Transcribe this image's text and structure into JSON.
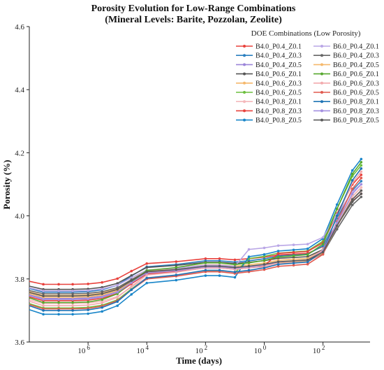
{
  "chart_data": {
    "type": "line",
    "title": "Porosity Evolution for Low-Range Combinations",
    "subtitle": "(Mineral Levels: Barite, Pozzolan, Zeolite)",
    "xlabel": "Time (days)",
    "ylabel": "Porosity (%)",
    "xscale": "log",
    "xlim": [
      1e-08,
      4000
    ],
    "ylim": [
      3.6,
      4.6
    ],
    "x_ticks": [
      {
        "value": 1e-06,
        "base": "10",
        "exp": "6"
      },
      {
        "value": 0.0001,
        "base": "10",
        "exp": "4"
      },
      {
        "value": 0.01,
        "base": "10",
        "exp": "2"
      },
      {
        "value": 1,
        "base": "10",
        "exp": "0"
      },
      {
        "value": 100,
        "base": "10",
        "exp": "2"
      }
    ],
    "y_ticks": [
      "3.6",
      "3.8",
      "4.0",
      "4.2",
      "4.4",
      "4.6"
    ],
    "grid": false,
    "legend_title": "DOE Combinations (Low Porosity)",
    "legend_position": "top-right",
    "shape": {
      "x": [
        1e-08,
        3e-08,
        1e-07,
        3e-07,
        1e-06,
        3e-06,
        1e-05,
        3e-05,
        0.0001,
        0.001,
        0.01,
        0.03,
        0.1,
        0.3,
        1,
        3,
        10,
        30,
        100,
        300,
        1000,
        2000
      ],
      "base": [
        0.008,
        0.0,
        0.0,
        0.0,
        0.001,
        0.005,
        0.015,
        0.035,
        0.055,
        0.06,
        0.068,
        0.068,
        0.065,
        0.068,
        0.072,
        0.078,
        0.08,
        0.082,
        0.1,
        0.16,
        0.22,
        0.24
      ]
    },
    "series": [
      {
        "name": "B4.0_P0.4_Z0.1",
        "color": "#e8413c",
        "start": 3.783,
        "end": 4.07,
        "jump_x": 0.08,
        "jump": 0.0
      },
      {
        "name": "B4.0_P0.4_Z0.3",
        "color": "#2a7fbf",
        "start": 3.758,
        "end": 4.11,
        "jump_x": 0.08,
        "jump": 0.0
      },
      {
        "name": "B4.0_P0.4_Z0.5",
        "color": "#9b84d9",
        "start": 3.738,
        "end": 4.08,
        "jump_x": 0.08,
        "jump": 0.0
      },
      {
        "name": "B4.0_P0.6_Z0.1",
        "color": "#555555",
        "start": 3.767,
        "end": 4.07,
        "jump_x": 0.08,
        "jump": 0.0
      },
      {
        "name": "B4.0_P0.6_Z0.3",
        "color": "#f5b86b",
        "start": 3.748,
        "end": 4.09,
        "jump_x": 0.08,
        "jump": 0.0
      },
      {
        "name": "B4.0_P0.6_Z0.5",
        "color": "#6cbf3e",
        "start": 3.708,
        "end": 4.16,
        "jump_x": 0.15,
        "jump": 0.04
      },
      {
        "name": "B4.0_P0.8_Z0.1",
        "color": "#f4b8bb",
        "start": 3.722,
        "end": 4.09,
        "jump_x": 0.5,
        "jump": 0.01
      },
      {
        "name": "B4.0_P0.8_Z0.3",
        "color": "#e8413c",
        "start": 3.731,
        "end": 4.13,
        "jump_x": 1.5,
        "jump": 0.03
      },
      {
        "name": "B4.0_P0.8_Z0.5",
        "color": "#1a86c9",
        "start": 3.688,
        "end": 4.18,
        "jump_x": 0.13,
        "jump": 0.06
      },
      {
        "name": "B6.0_P0.4_Z0.1",
        "color": "#b9a6e6",
        "start": 3.762,
        "end": 4.1,
        "jump_x": 0.3,
        "jump": 0.05
      },
      {
        "name": "B6.0_P0.4_Z0.3",
        "color": "#666666",
        "start": 3.753,
        "end": 4.06,
        "jump_x": 0.08,
        "jump": 0.0
      },
      {
        "name": "B6.0_P0.4_Z0.5",
        "color": "#f5b86b",
        "start": 3.742,
        "end": 4.08,
        "jump_x": 0.08,
        "jump": 0.0
      },
      {
        "name": "B6.0_P0.6_Z0.1",
        "color": "#56a82e",
        "start": 3.725,
        "end": 4.17,
        "jump_x": 0.08,
        "jump": 0.0
      },
      {
        "name": "B6.0_P0.6_Z0.3",
        "color": "#f2aaad",
        "start": 3.715,
        "end": 4.14,
        "jump_x": 0.08,
        "jump": 0.0
      },
      {
        "name": "B6.0_P0.6_Z0.5",
        "color": "#e05a4f",
        "start": 3.705,
        "end": 4.12,
        "jump_x": 0.08,
        "jump": 0.0
      },
      {
        "name": "B6.0_P0.8_Z0.1",
        "color": "#1e73b5",
        "start": 3.7,
        "end": 4.15,
        "jump_x": 0.08,
        "jump": 0.0
      },
      {
        "name": "B6.0_P0.8_Z0.3",
        "color": "#a38fe0",
        "start": 3.735,
        "end": 4.1,
        "jump_x": 0.08,
        "jump": 0.0
      },
      {
        "name": "B6.0_P0.8_Z0.5",
        "color": "#5a5a5a",
        "start": 3.746,
        "end": 4.08,
        "jump_x": 0.08,
        "jump": 0.0
      }
    ]
  }
}
